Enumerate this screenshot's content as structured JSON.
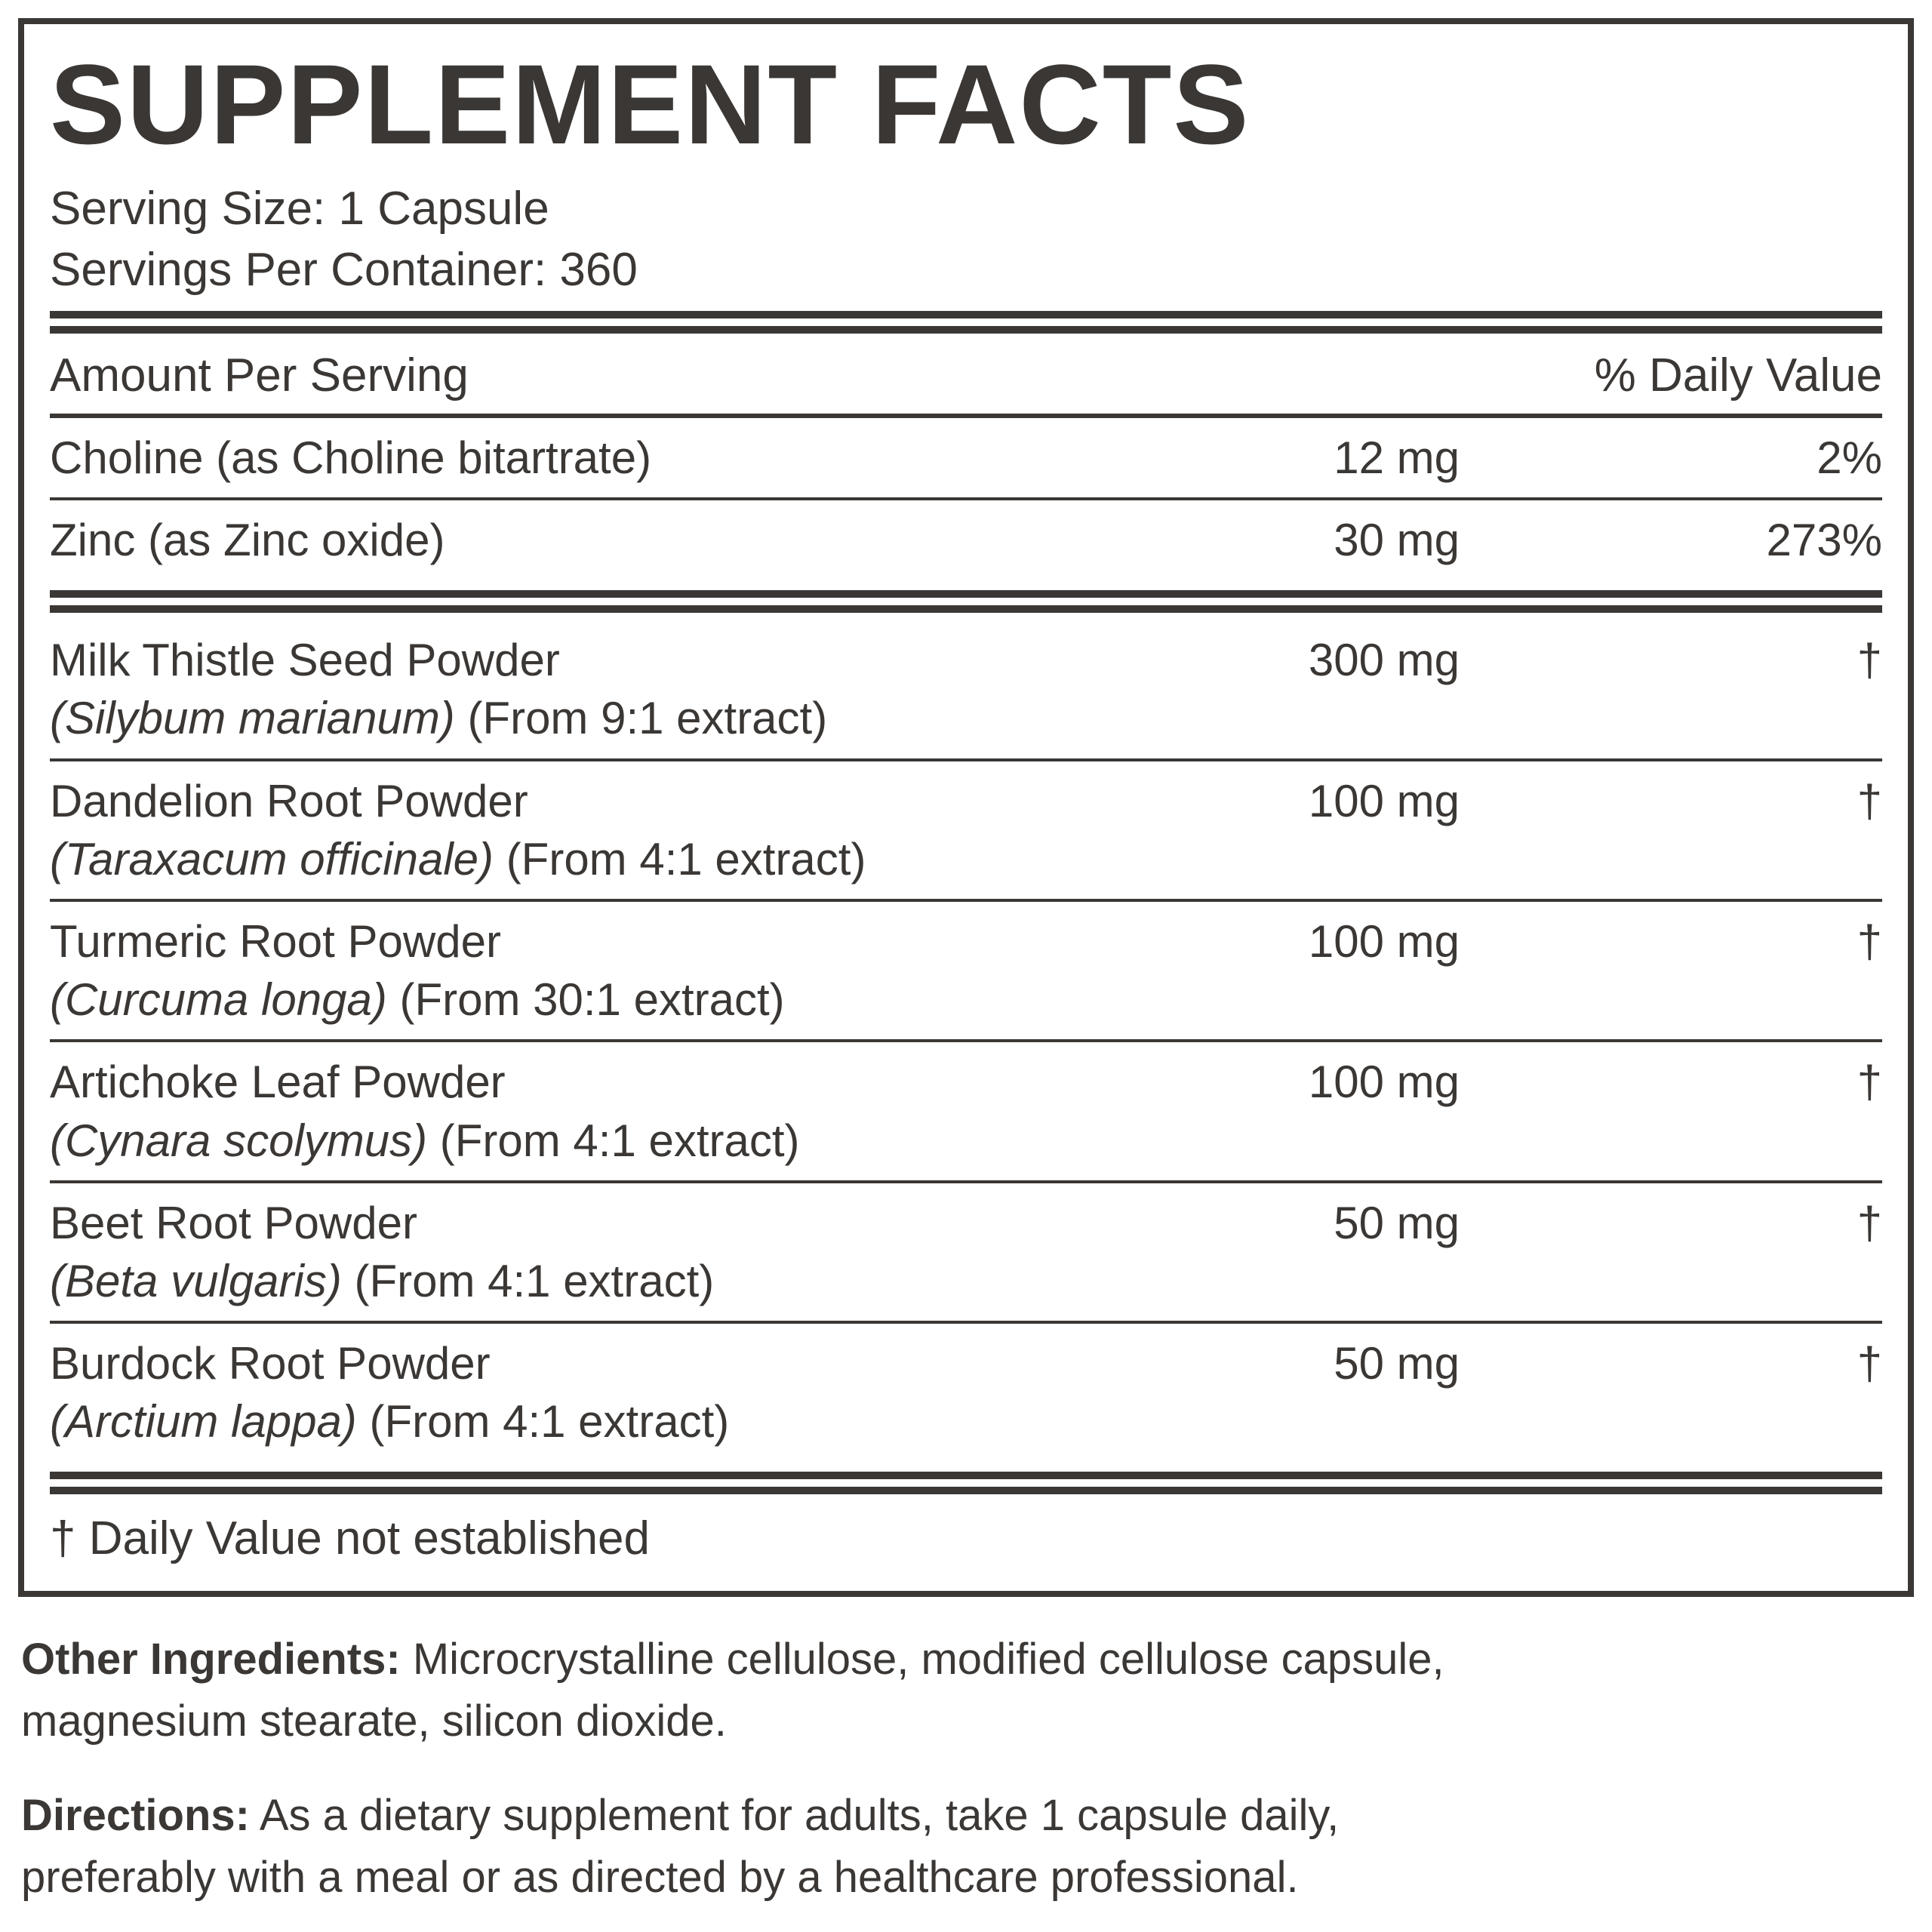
{
  "colors": {
    "text": "#3a3735",
    "background": "#ffffff"
  },
  "label": {
    "title": "SUPPLEMENT FACTS",
    "serving_size": "Serving Size: 1 Capsule",
    "servings_per_container": "Servings Per Container: 360",
    "header": {
      "amount": "Amount Per Serving",
      "daily_value": "% Daily Value"
    },
    "rows": [
      {
        "name": "Choline (as Choline bitartrate)",
        "amount": "12 mg",
        "dv": "2%"
      },
      {
        "name": "Zinc (as Zinc oxide)",
        "amount": "30 mg",
        "dv": "273%"
      },
      {
        "name": "Milk Thistle Seed Powder",
        "latin": "(Silybum marianum)",
        "extract": " (From 9:1 extract)",
        "amount": "300 mg",
        "dv": "†"
      },
      {
        "name": "Dandelion Root Powder",
        "latin": "(Taraxacum officinale)",
        "extract": " (From 4:1 extract)",
        "amount": "100 mg",
        "dv": "†"
      },
      {
        "name": "Turmeric Root Powder",
        "latin": "(Curcuma longa)",
        "extract": " (From 30:1 extract)",
        "amount": "100 mg",
        "dv": "†"
      },
      {
        "name": "Artichoke Leaf Powder",
        "latin": "(Cynara scolymus)",
        "extract": " (From 4:1 extract)",
        "amount": "100 mg",
        "dv": "†"
      },
      {
        "name": "Beet Root Powder",
        "latin": "(Beta vulgaris)",
        "extract": " (From 4:1 extract)",
        "amount": "50 mg",
        "dv": "†"
      },
      {
        "name": "Burdock Root Powder",
        "latin": "(Arctium lappa)",
        "extract": " (From 4:1 extract)",
        "amount": "50 mg",
        "dv": "†"
      }
    ],
    "footnote": "† Daily Value not established",
    "other_ingredients_label": "Other Ingredients:",
    "other_ingredients_text": " Microcrystalline cellulose, modified cellulose capsule,\nmagnesium stearate, silicon dioxide.",
    "directions_label": "Directions:",
    "directions_text": " As a dietary supplement for adults, take 1 capsule daily,\npreferably with a meal or as directed by a healthcare professional."
  }
}
